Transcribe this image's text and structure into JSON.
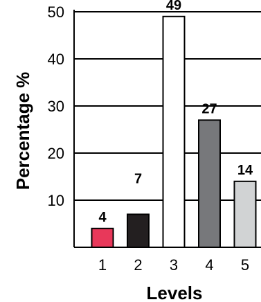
{
  "chart_data": {
    "type": "bar",
    "title": "",
    "xlabel": "Levels",
    "ylabel": "Percentage %",
    "categories": [
      "1",
      "2",
      "3",
      "4",
      "5"
    ],
    "values": [
      4,
      7,
      49,
      27,
      14
    ],
    "data_labels": [
      "4",
      "7",
      "49",
      "27",
      "14"
    ],
    "bar_colors": [
      "#e8385a",
      "#231f20",
      "#ffffff",
      "#77787b",
      "#d1d3d4"
    ],
    "ylim": [
      0,
      50
    ],
    "yticks": [
      "10",
      "20",
      "30",
      "40",
      "50"
    ],
    "grid": "horizontal",
    "legend": "none"
  }
}
